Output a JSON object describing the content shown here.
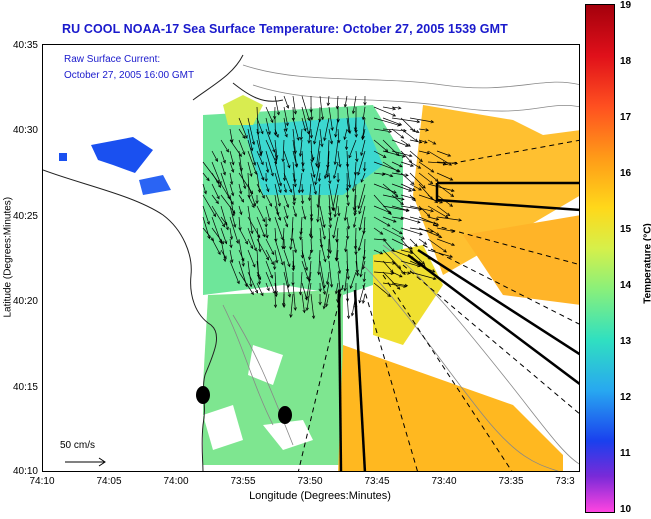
{
  "title": "RU COOL  NOAA-17  Sea Surface Temperature:  October 27, 2005 1539 GMT",
  "overlay": {
    "line1": "Raw Surface Current:",
    "line2": "October 27, 2005 16:00 GMT"
  },
  "axes": {
    "x_title": "Longitude (Degrees:Minutes)",
    "y_title": "Latitude (Degrees:Minutes)",
    "x_ticks": [
      "74:10",
      "74:05",
      "74:00",
      "73:55",
      "73:50",
      "73:45",
      "73:40",
      "73:35",
      "73:3"
    ],
    "y_ticks": [
      "40:35",
      "40:30",
      "40:25",
      "40:20",
      "40:15",
      "40:10"
    ]
  },
  "scale": {
    "label": "50 cm/s"
  },
  "colorbar": {
    "title": "Temperature (°C)",
    "ticks": [
      "19",
      "18",
      "17",
      "16",
      "15",
      "14",
      "13",
      "12",
      "11",
      "10"
    ],
    "colors": {
      "warm": "#ffb020",
      "mid": "#c8e840",
      "cool": "#60e0a0",
      "cold": "#1a50f0"
    }
  }
}
